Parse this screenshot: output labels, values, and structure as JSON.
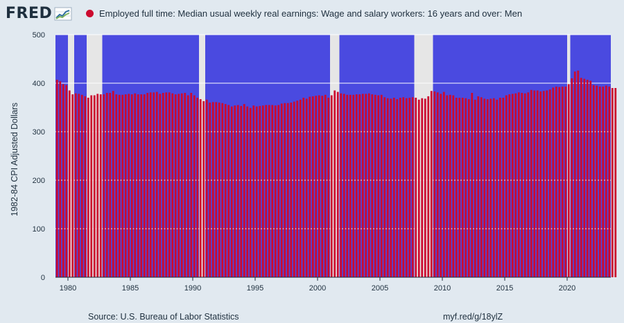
{
  "header": {
    "logo_text": "FRED",
    "logo_icon": "line-graph-icon",
    "legend_label": "Employed full time: Median usual weekly real earnings: Wage and salary workers: 16 years and over: Men",
    "series_color": "#cc0a2f"
  },
  "colors": {
    "plot_background": "#4a4ae0",
    "recession_shading": "#e6e6e6",
    "bar": "#cc0a2f",
    "grid": "#ffffff",
    "page_background": "#e1e9f0"
  },
  "footer": {
    "source": "Source: U.S. Bureau of Labor Statistics",
    "short_url": "myf.red/g/18ylZ"
  },
  "chart_data": {
    "type": "bar",
    "frequency": "quarterly",
    "title": "",
    "xlabel": "",
    "ylabel": "1982-84 CPI Adjusted Dollars",
    "ylim": [
      0,
      500
    ],
    "xlim": [
      1979.0,
      2023.5
    ],
    "yticks": [
      0,
      100,
      200,
      300,
      400,
      500
    ],
    "xticks": [
      1980,
      1985,
      1990,
      1995,
      2000,
      2005,
      2010,
      2015,
      2020
    ],
    "grid": true,
    "legend_position": "top",
    "recessions": [
      [
        1980.0,
        1980.5
      ],
      [
        1981.5,
        1982.75
      ],
      [
        1990.5,
        1991.0
      ],
      [
        2001.0,
        2001.75
      ],
      [
        2007.75,
        2009.25
      ],
      [
        2020.0,
        2020.25
      ]
    ],
    "series": [
      {
        "name": "Employed full time: Median usual weekly real earnings: Wage and salary workers: 16 years and over: Men",
        "start": "1979 Q1",
        "values": [
          407,
          404,
          398,
          396,
          385,
          377,
          379,
          378,
          376,
          373,
          370,
          375,
          375,
          378,
          377,
          377,
          380,
          380,
          384,
          377,
          376,
          376,
          377,
          378,
          377,
          379,
          377,
          377,
          377,
          380,
          381,
          381,
          382,
          378,
          380,
          381,
          381,
          379,
          377,
          378,
          379,
          380,
          375,
          380,
          375,
          370,
          367,
          363,
          366,
          360,
          361,
          361,
          360,
          359,
          357,
          355,
          352,
          354,
          355,
          353,
          357,
          352,
          349,
          354,
          352,
          353,
          354,
          355,
          355,
          355,
          354,
          355,
          358,
          359,
          359,
          360,
          362,
          364,
          366,
          370,
          368,
          372,
          373,
          374,
          375,
          374,
          376,
          370,
          375,
          385,
          382,
          379,
          378,
          376,
          376,
          376,
          377,
          377,
          378,
          378,
          379,
          377,
          376,
          375,
          376,
          371,
          369,
          368,
          370,
          367,
          370,
          371,
          369,
          370,
          371,
          370,
          366,
          369,
          368,
          373,
          384,
          383,
          381,
          378,
          382,
          375,
          376,
          375,
          370,
          370,
          370,
          369,
          367,
          380,
          366,
          373,
          371,
          368,
          367,
          368,
          369,
          366,
          370,
          370,
          375,
          377,
          378,
          379,
          381,
          380,
          379,
          381,
          386,
          385,
          385,
          383,
          384,
          385,
          387,
          391,
          393,
          392,
          393,
          393,
          398,
          410,
          424,
          426,
          411,
          409,
          407,
          405,
          396,
          395,
          393,
          393,
          395,
          393,
          390,
          390
        ]
      }
    ]
  }
}
